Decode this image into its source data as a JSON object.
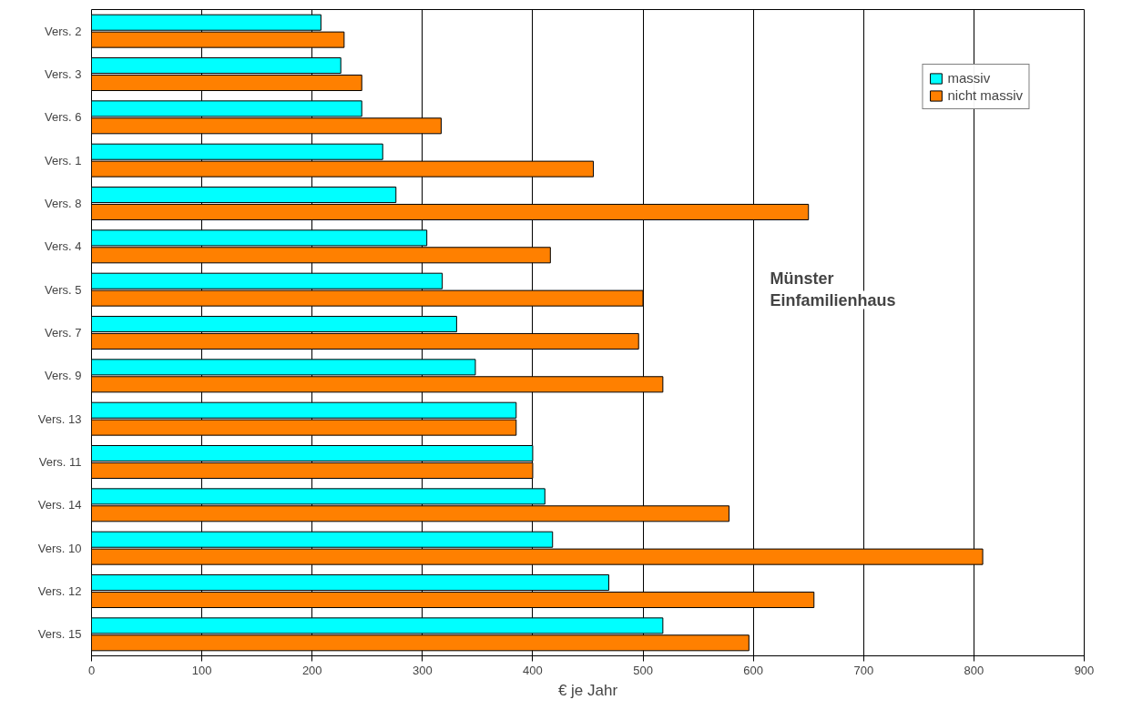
{
  "chart_data": {
    "type": "bar",
    "orientation": "horizontal",
    "xlabel": "€ je Jahr",
    "categories": [
      "Vers. 2",
      "Vers. 3",
      "Vers. 6",
      "Vers. 1",
      "Vers. 8",
      "Vers. 4",
      "Vers. 5",
      "Vers. 7",
      "Vers. 9",
      "Vers. 13",
      "Vers. 11",
      "Vers. 14",
      "Vers. 10",
      "Vers. 12",
      "Vers. 15"
    ],
    "series": [
      {
        "name": "massiv",
        "color": "#00ffff",
        "values": [
          208,
          226,
          245,
          264,
          276,
          304,
          318,
          331,
          348,
          385,
          400,
          411,
          418,
          469,
          518
        ]
      },
      {
        "name": "nicht massiv",
        "color": "#ff8000",
        "values": [
          229,
          245,
          317,
          455,
          650,
          416,
          500,
          496,
          518,
          385,
          400,
          578,
          808,
          655,
          596
        ]
      }
    ],
    "xlim": [
      0,
      900
    ],
    "xticks": [
      0,
      100,
      200,
      300,
      400,
      500,
      600,
      700,
      800,
      900
    ],
    "grid": "x",
    "legend": "top right",
    "annotations": [
      "Münster",
      "Einfamilienhaus"
    ]
  }
}
